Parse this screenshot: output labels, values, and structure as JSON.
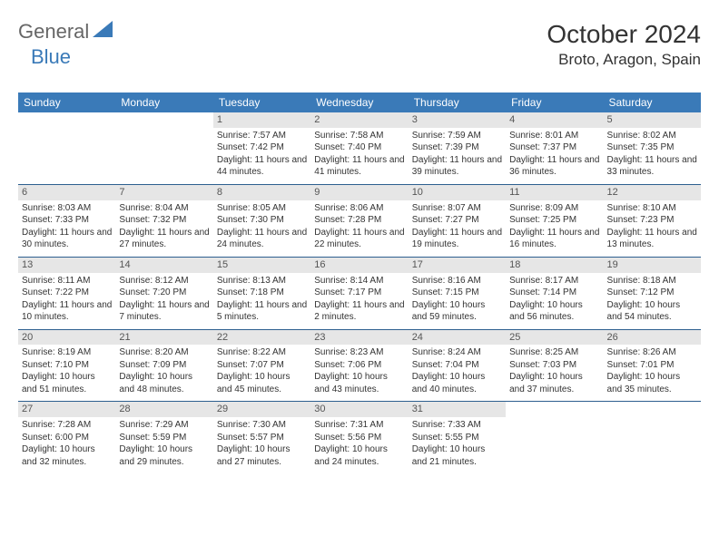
{
  "logo": {
    "text1": "General",
    "text2": "Blue"
  },
  "title": {
    "month": "October 2024",
    "location": "Broto, Aragon, Spain"
  },
  "colors": {
    "header_bg": "#3a7ab8",
    "daynum_bg": "#e6e6e6",
    "row_border": "#2d5f8f"
  },
  "dayHeaders": [
    "Sunday",
    "Monday",
    "Tuesday",
    "Wednesday",
    "Thursday",
    "Friday",
    "Saturday"
  ],
  "weeks": [
    [
      {
        "n": "",
        "sr": "",
        "ss": "",
        "dl": ""
      },
      {
        "n": "",
        "sr": "",
        "ss": "",
        "dl": ""
      },
      {
        "n": "1",
        "sr": "Sunrise: 7:57 AM",
        "ss": "Sunset: 7:42 PM",
        "dl": "Daylight: 11 hours and 44 minutes."
      },
      {
        "n": "2",
        "sr": "Sunrise: 7:58 AM",
        "ss": "Sunset: 7:40 PM",
        "dl": "Daylight: 11 hours and 41 minutes."
      },
      {
        "n": "3",
        "sr": "Sunrise: 7:59 AM",
        "ss": "Sunset: 7:39 PM",
        "dl": "Daylight: 11 hours and 39 minutes."
      },
      {
        "n": "4",
        "sr": "Sunrise: 8:01 AM",
        "ss": "Sunset: 7:37 PM",
        "dl": "Daylight: 11 hours and 36 minutes."
      },
      {
        "n": "5",
        "sr": "Sunrise: 8:02 AM",
        "ss": "Sunset: 7:35 PM",
        "dl": "Daylight: 11 hours and 33 minutes."
      }
    ],
    [
      {
        "n": "6",
        "sr": "Sunrise: 8:03 AM",
        "ss": "Sunset: 7:33 PM",
        "dl": "Daylight: 11 hours and 30 minutes."
      },
      {
        "n": "7",
        "sr": "Sunrise: 8:04 AM",
        "ss": "Sunset: 7:32 PM",
        "dl": "Daylight: 11 hours and 27 minutes."
      },
      {
        "n": "8",
        "sr": "Sunrise: 8:05 AM",
        "ss": "Sunset: 7:30 PM",
        "dl": "Daylight: 11 hours and 24 minutes."
      },
      {
        "n": "9",
        "sr": "Sunrise: 8:06 AM",
        "ss": "Sunset: 7:28 PM",
        "dl": "Daylight: 11 hours and 22 minutes."
      },
      {
        "n": "10",
        "sr": "Sunrise: 8:07 AM",
        "ss": "Sunset: 7:27 PM",
        "dl": "Daylight: 11 hours and 19 minutes."
      },
      {
        "n": "11",
        "sr": "Sunrise: 8:09 AM",
        "ss": "Sunset: 7:25 PM",
        "dl": "Daylight: 11 hours and 16 minutes."
      },
      {
        "n": "12",
        "sr": "Sunrise: 8:10 AM",
        "ss": "Sunset: 7:23 PM",
        "dl": "Daylight: 11 hours and 13 minutes."
      }
    ],
    [
      {
        "n": "13",
        "sr": "Sunrise: 8:11 AM",
        "ss": "Sunset: 7:22 PM",
        "dl": "Daylight: 11 hours and 10 minutes."
      },
      {
        "n": "14",
        "sr": "Sunrise: 8:12 AM",
        "ss": "Sunset: 7:20 PM",
        "dl": "Daylight: 11 hours and 7 minutes."
      },
      {
        "n": "15",
        "sr": "Sunrise: 8:13 AM",
        "ss": "Sunset: 7:18 PM",
        "dl": "Daylight: 11 hours and 5 minutes."
      },
      {
        "n": "16",
        "sr": "Sunrise: 8:14 AM",
        "ss": "Sunset: 7:17 PM",
        "dl": "Daylight: 11 hours and 2 minutes."
      },
      {
        "n": "17",
        "sr": "Sunrise: 8:16 AM",
        "ss": "Sunset: 7:15 PM",
        "dl": "Daylight: 10 hours and 59 minutes."
      },
      {
        "n": "18",
        "sr": "Sunrise: 8:17 AM",
        "ss": "Sunset: 7:14 PM",
        "dl": "Daylight: 10 hours and 56 minutes."
      },
      {
        "n": "19",
        "sr": "Sunrise: 8:18 AM",
        "ss": "Sunset: 7:12 PM",
        "dl": "Daylight: 10 hours and 54 minutes."
      }
    ],
    [
      {
        "n": "20",
        "sr": "Sunrise: 8:19 AM",
        "ss": "Sunset: 7:10 PM",
        "dl": "Daylight: 10 hours and 51 minutes."
      },
      {
        "n": "21",
        "sr": "Sunrise: 8:20 AM",
        "ss": "Sunset: 7:09 PM",
        "dl": "Daylight: 10 hours and 48 minutes."
      },
      {
        "n": "22",
        "sr": "Sunrise: 8:22 AM",
        "ss": "Sunset: 7:07 PM",
        "dl": "Daylight: 10 hours and 45 minutes."
      },
      {
        "n": "23",
        "sr": "Sunrise: 8:23 AM",
        "ss": "Sunset: 7:06 PM",
        "dl": "Daylight: 10 hours and 43 minutes."
      },
      {
        "n": "24",
        "sr": "Sunrise: 8:24 AM",
        "ss": "Sunset: 7:04 PM",
        "dl": "Daylight: 10 hours and 40 minutes."
      },
      {
        "n": "25",
        "sr": "Sunrise: 8:25 AM",
        "ss": "Sunset: 7:03 PM",
        "dl": "Daylight: 10 hours and 37 minutes."
      },
      {
        "n": "26",
        "sr": "Sunrise: 8:26 AM",
        "ss": "Sunset: 7:01 PM",
        "dl": "Daylight: 10 hours and 35 minutes."
      }
    ],
    [
      {
        "n": "27",
        "sr": "Sunrise: 7:28 AM",
        "ss": "Sunset: 6:00 PM",
        "dl": "Daylight: 10 hours and 32 minutes."
      },
      {
        "n": "28",
        "sr": "Sunrise: 7:29 AM",
        "ss": "Sunset: 5:59 PM",
        "dl": "Daylight: 10 hours and 29 minutes."
      },
      {
        "n": "29",
        "sr": "Sunrise: 7:30 AM",
        "ss": "Sunset: 5:57 PM",
        "dl": "Daylight: 10 hours and 27 minutes."
      },
      {
        "n": "30",
        "sr": "Sunrise: 7:31 AM",
        "ss": "Sunset: 5:56 PM",
        "dl": "Daylight: 10 hours and 24 minutes."
      },
      {
        "n": "31",
        "sr": "Sunrise: 7:33 AM",
        "ss": "Sunset: 5:55 PM",
        "dl": "Daylight: 10 hours and 21 minutes."
      },
      {
        "n": "",
        "sr": "",
        "ss": "",
        "dl": ""
      },
      {
        "n": "",
        "sr": "",
        "ss": "",
        "dl": ""
      }
    ]
  ]
}
